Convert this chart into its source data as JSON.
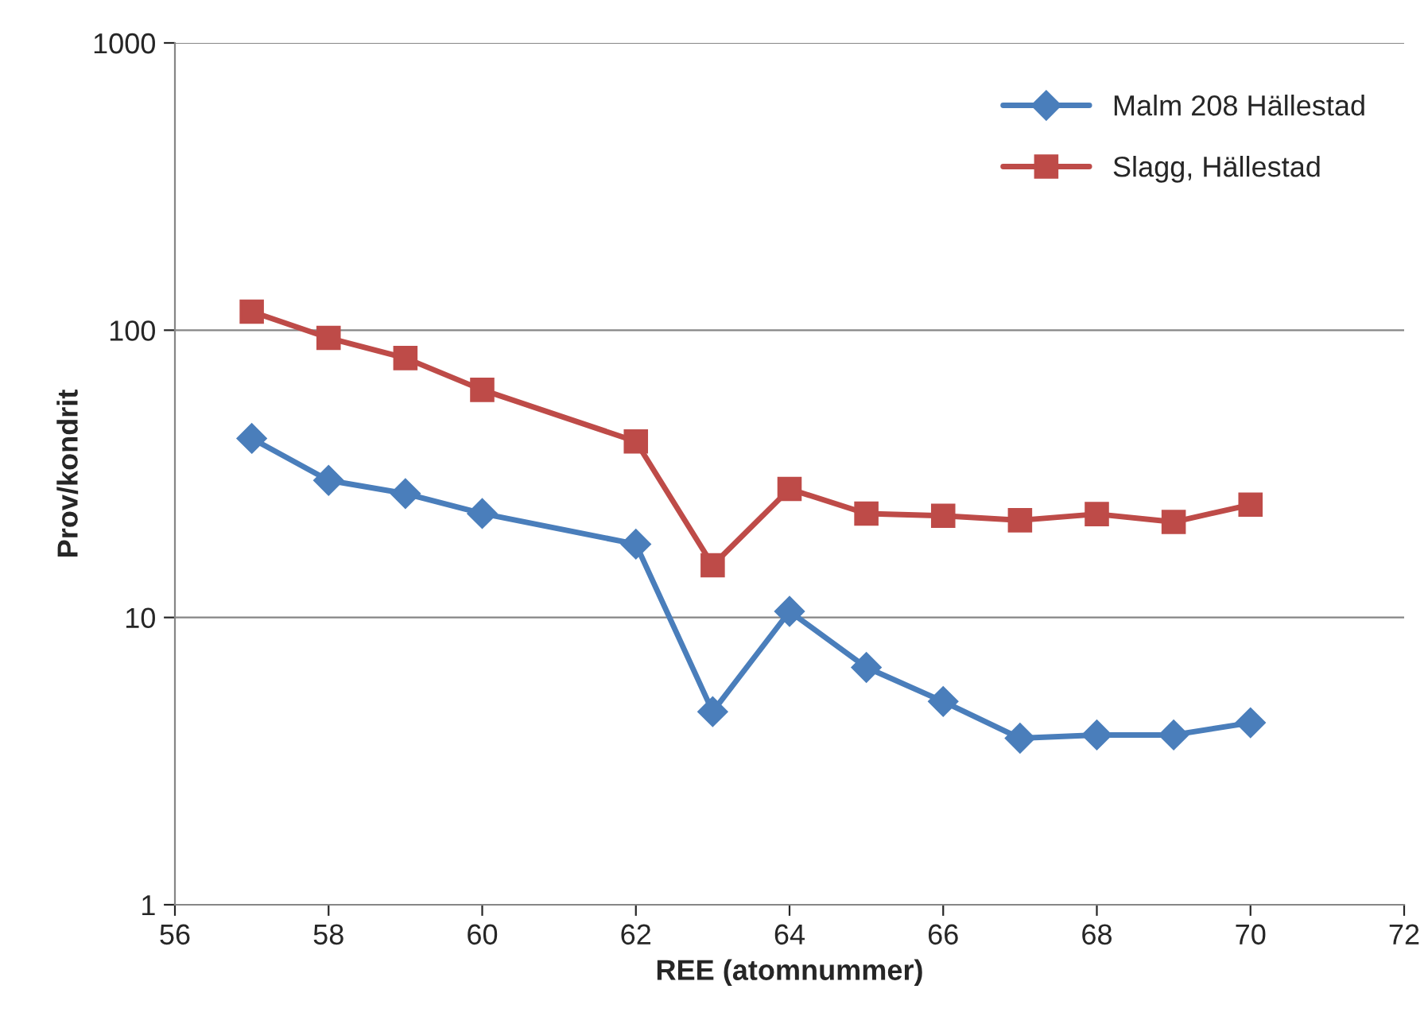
{
  "chart_data": {
    "type": "line",
    "xlabel": "REE (atomnummer)",
    "ylabel": "Prov/kondrit",
    "x": [
      57,
      58,
      59,
      60,
      62,
      63,
      64,
      65,
      66,
      67,
      68,
      69,
      70
    ],
    "series": [
      {
        "name": "Malm 208 Hällestad",
        "color": "#4a7ebb",
        "marker": "diamond",
        "values": [
          42,
          30,
          27,
          23,
          18,
          4.7,
          10.5,
          6.7,
          5.1,
          3.8,
          3.9,
          3.9,
          4.3
        ]
      },
      {
        "name": "Slagg, Hällestad",
        "color": "#be4b48",
        "marker": "square",
        "values": [
          116,
          94,
          80,
          62,
          41,
          15.2,
          28,
          23,
          22.6,
          21.8,
          22.9,
          21.5,
          24.7
        ]
      }
    ],
    "log": "y",
    "xlim": [
      56,
      72
    ],
    "xticks": [
      56,
      58,
      60,
      62,
      64,
      66,
      68,
      70,
      72
    ],
    "ylim": [
      1,
      1000
    ],
    "yticks": [
      1,
      10,
      100,
      1000
    ],
    "grid": "y",
    "legend": "top right",
    "line_style": "solid"
  }
}
